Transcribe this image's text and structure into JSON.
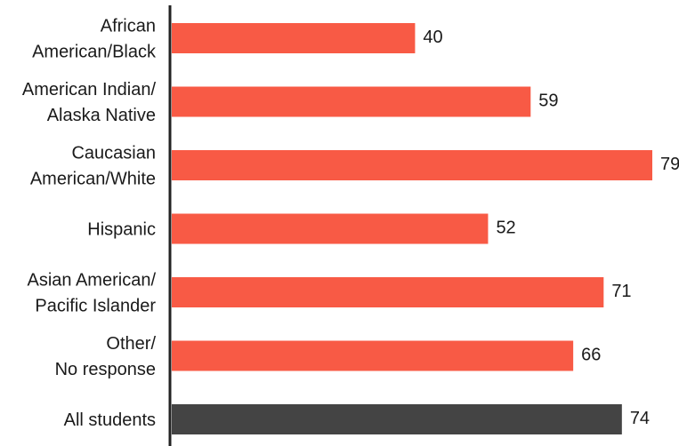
{
  "chart_data": {
    "type": "bar",
    "orientation": "horizontal",
    "categories": [
      [
        "African",
        "American/Black"
      ],
      [
        "American Indian/",
        "Alaska Native"
      ],
      [
        "Caucasian",
        "American/White"
      ],
      [
        "Hispanic"
      ],
      [
        "Asian American/",
        "Pacific Islander"
      ],
      [
        "Other/",
        "No response"
      ],
      [
        "All students"
      ]
    ],
    "values": [
      40,
      59,
      79,
      52,
      71,
      66,
      74
    ],
    "value_labels": [
      "40",
      "59",
      "79",
      "52",
      "71",
      "66",
      "74"
    ],
    "xlim": [
      0,
      79
    ],
    "grid": false,
    "legend": "none",
    "colors": {
      "bar": "#f85a45",
      "highlight_bar": "#444444",
      "axis": "#222222"
    },
    "highlight_index": 6
  }
}
